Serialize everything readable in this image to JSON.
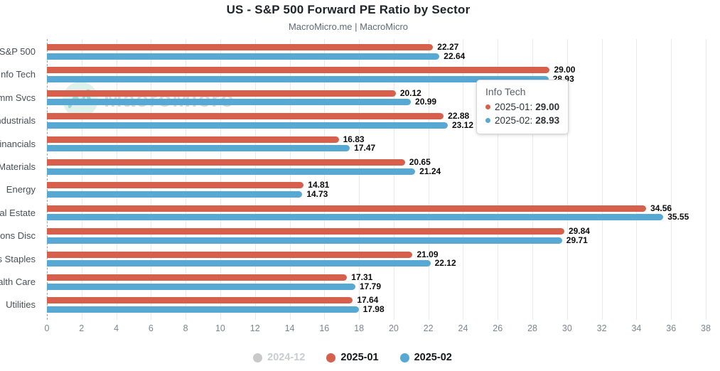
{
  "header": {
    "title": "US - S&P 500 Forward PE Ratio by Sector",
    "subtitle": "MacroMicro.me | MacroMicro"
  },
  "watermark": {
    "text": "MacroMicro"
  },
  "chart_data": {
    "type": "bar",
    "orientation": "horizontal",
    "title": "US - S&P 500 Forward PE Ratio by Sector",
    "subtitle": "MacroMicro.me | MacroMicro",
    "categories": [
      "S&P 500",
      "Info Tech",
      "Comm Svcs",
      "Industrials",
      "Financials",
      "Materials",
      "Energy",
      "Real Estate",
      "Cons Disc",
      "Cons Staples",
      "Health Care",
      "Utilities"
    ],
    "series": [
      {
        "name": "2024-12",
        "color": "#c9c9c9",
        "enabled": false,
        "values": null
      },
      {
        "name": "2025-01",
        "color": "#d7604c",
        "enabled": true,
        "values": [
          22.27,
          29.0,
          20.12,
          22.88,
          16.83,
          20.65,
          14.81,
          34.56,
          29.84,
          21.09,
          17.31,
          17.64
        ]
      },
      {
        "name": "2025-02",
        "color": "#57a9d4",
        "enabled": true,
        "values": [
          22.64,
          28.93,
          20.99,
          23.12,
          17.47,
          21.24,
          14.73,
          35.55,
          29.71,
          22.12,
          17.79,
          17.98
        ]
      }
    ],
    "xlim": [
      0,
      38
    ],
    "x_ticks": [
      0,
      2,
      4,
      6,
      8,
      10,
      12,
      14,
      16,
      18,
      20,
      22,
      24,
      26,
      28,
      30,
      32,
      34,
      36,
      38
    ],
    "grid": "vertical",
    "legend_position": "bottom",
    "value_label_decimals": 2
  },
  "tooltip": {
    "title": "Info Tech",
    "rows": [
      {
        "series": "2025-01",
        "value": "29.00",
        "color": "#d7604c"
      },
      {
        "series": "2025-02",
        "value": "28.93",
        "color": "#57a9d4"
      }
    ]
  },
  "colors": {
    "series_red": "#d7604c",
    "series_blue": "#57a9d4",
    "disabled_gray": "#c9c9c9",
    "gridline": "#e7e9eb"
  }
}
